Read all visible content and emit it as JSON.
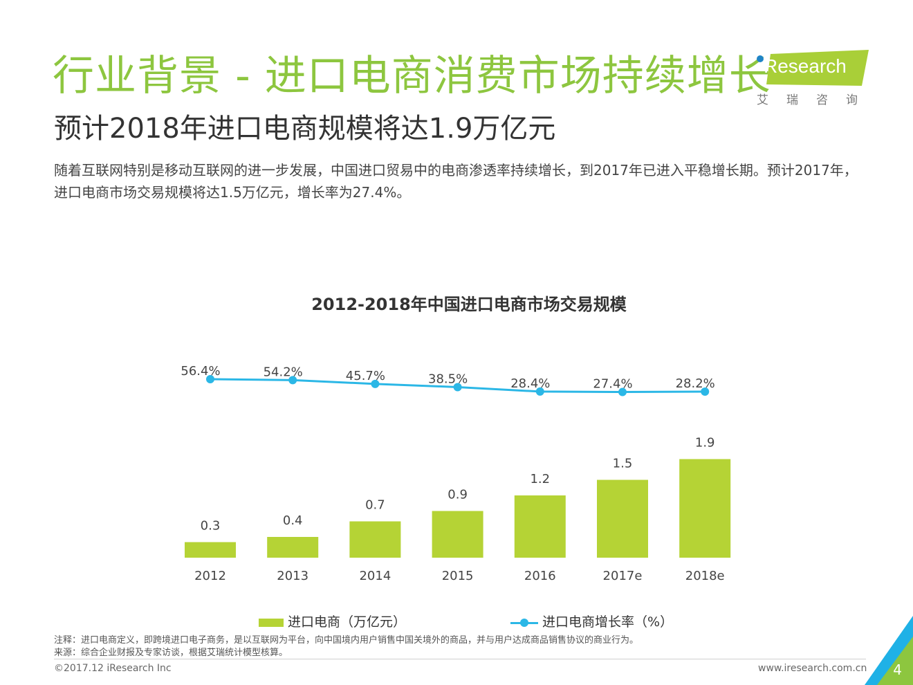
{
  "header": {
    "title": "行业背景 - 进口电商消费市场持续增长",
    "subtitle": "预计2018年进口电商规模将达1.9万亿元",
    "description": "随着互联网特别是移动互联网的进一步发展，中国进口贸易中的电商渗透率持续增长，到2017年已进入平稳增长期。预计2017年，进口电商市场交易规模将达1.5万亿元，增长率为27.4%。"
  },
  "logo": {
    "brand": "Research",
    "brand_cn": "艾瑞咨询"
  },
  "colors": {
    "title_green": "#8dc63f",
    "bar_green": "#b5d335",
    "line_blue": "#2bb7e6"
  },
  "chart_data": {
    "type": "bar",
    "title": "2012-2018年中国进口电商市场交易规模",
    "categories": [
      "2012",
      "2013",
      "2014",
      "2015",
      "2016",
      "2017e",
      "2018e"
    ],
    "series": [
      {
        "name": "进口电商（万亿元）",
        "type": "bar",
        "values": [
          0.3,
          0.4,
          0.7,
          0.9,
          1.2,
          1.5,
          1.9
        ],
        "labels": [
          "0.3",
          "0.4",
          "0.7",
          "0.9",
          "1.2",
          "1.5",
          "1.9"
        ]
      },
      {
        "name": "进口电商增长率（%）",
        "type": "line",
        "values": [
          56.4,
          54.2,
          45.7,
          38.5,
          28.4,
          27.4,
          28.2
        ],
        "labels": [
          "56.4%",
          "54.2%",
          "45.7%",
          "38.5%",
          "28.4%",
          "27.4%",
          "28.2%"
        ]
      }
    ],
    "legend": [
      "进口电商（万亿元）",
      "进口电商增长率（%）"
    ],
    "legend_position": "bottom"
  },
  "notes": {
    "note": "注释：进口电商定义，即跨境进口电子商务，是以互联网为平台，向中国境内用户销售中国关境外的商品，并与用户达成商品销售协议的商业行为。",
    "source": "来源：综合企业财报及专家访谈，根据艾瑞统计模型核算。"
  },
  "footer": {
    "copyright": "©2017.12 iResearch Inc",
    "website": "www.iresearch.com.cn",
    "page": "4"
  }
}
